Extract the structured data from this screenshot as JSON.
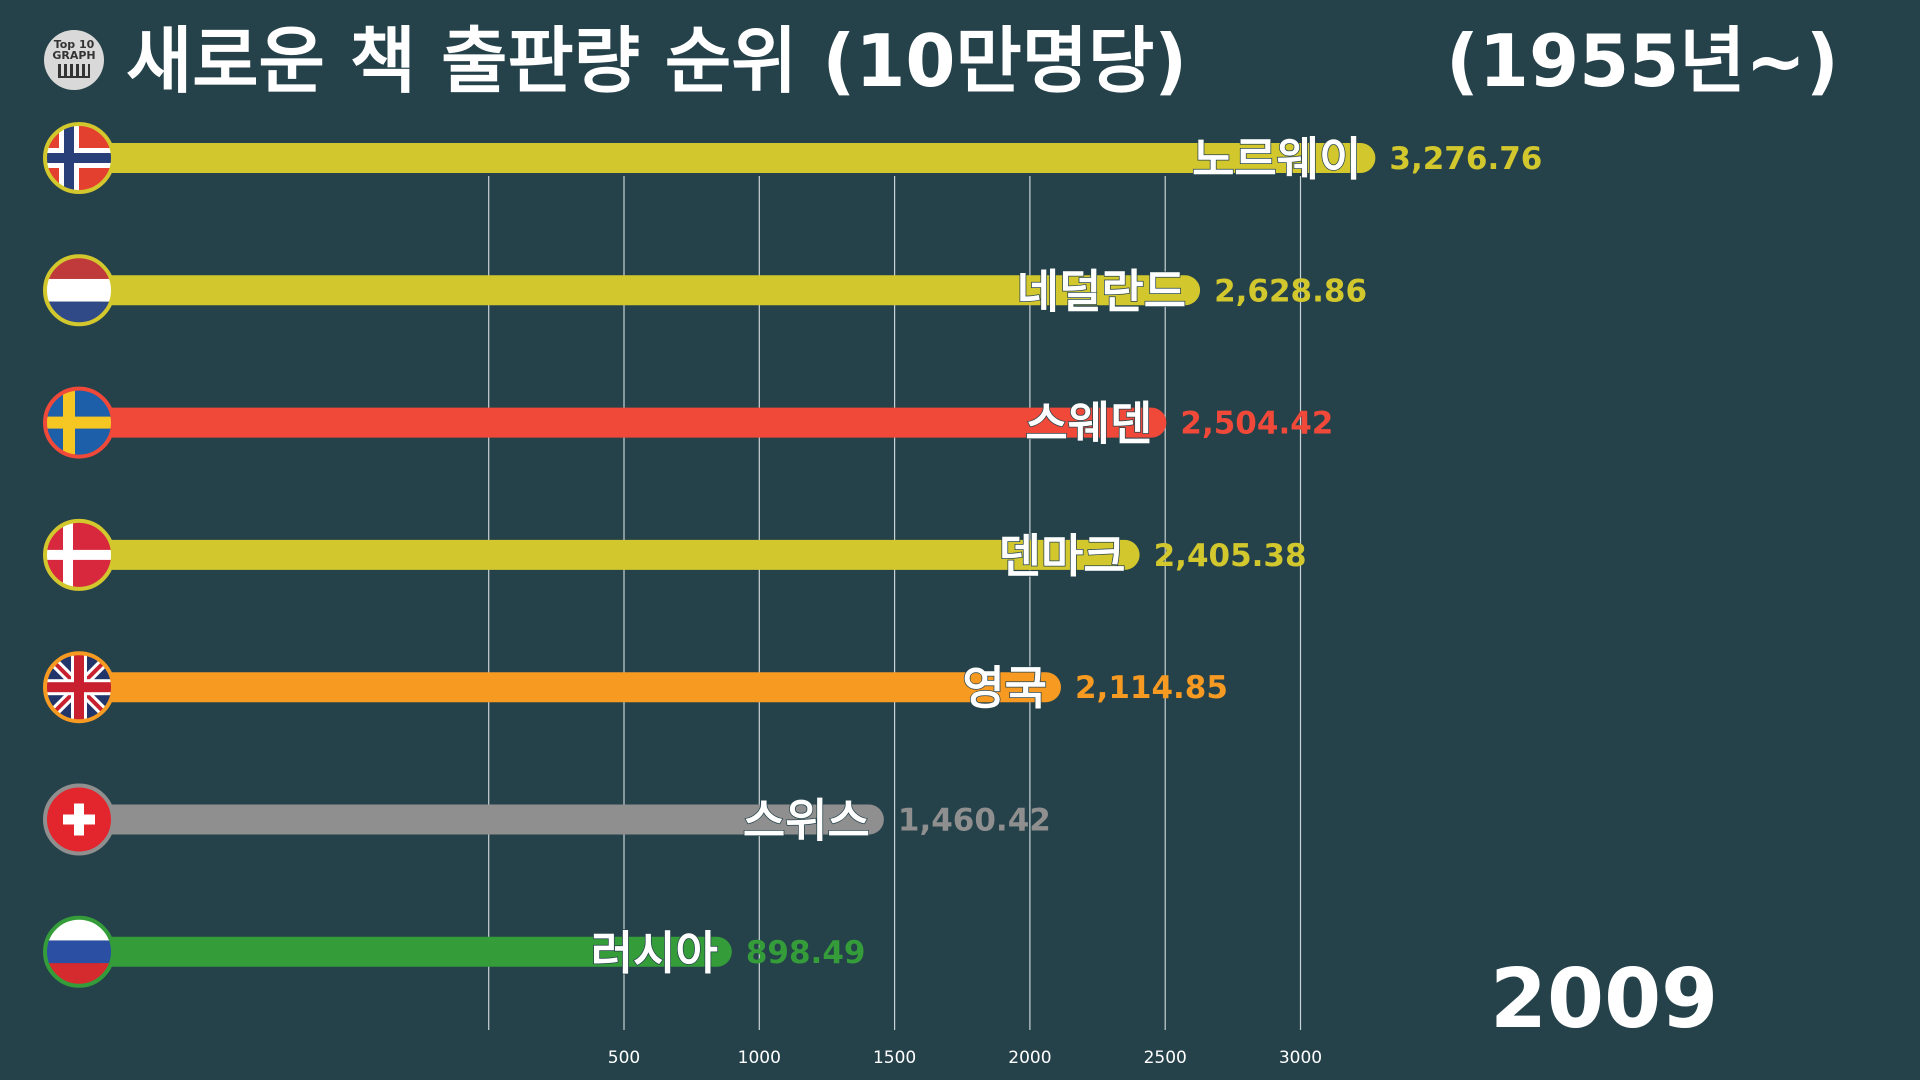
{
  "header": {
    "logo_text": "Top 10 GRAPH",
    "title": "새로운 책 출판량 순위 (10만명당)",
    "range": "(1955년~)"
  },
  "year": "2009",
  "chart_data": {
    "type": "bar",
    "orientation": "horizontal",
    "title": "새로운 책 출판량 순위 (10만명당)",
    "categories": [
      "노르웨이",
      "네덜란드",
      "스웨덴",
      "덴마크",
      "영국",
      "스위스",
      "러시아"
    ],
    "values": [
      3276.76,
      2628.86,
      2504.42,
      2405.38,
      2114.85,
      1460.42,
      898.49
    ],
    "value_labels": [
      "3,276.76",
      "2,628.86",
      "2,504.42",
      "2,405.38",
      "2,114.85",
      "1,460.42",
      "898.49"
    ],
    "colors": [
      "#d3c72e",
      "#d3c72e",
      "#f0493a",
      "#d3c72e",
      "#f79a22",
      "#8f8f8f",
      "#349d3a"
    ],
    "flags": [
      "norway-flag",
      "netherlands-flag",
      "sweden-flag",
      "denmark-flag",
      "uk-flag",
      "switzerland-flag",
      "russia-flag"
    ],
    "x_ticks": [
      500,
      1000,
      1500,
      2000,
      2500,
      3000
    ],
    "x_gridlines": [
      0,
      500,
      1000,
      1500,
      2000,
      2500,
      3000
    ],
    "xlim": [
      -500,
      3200
    ],
    "grid": true,
    "legend": "none"
  }
}
